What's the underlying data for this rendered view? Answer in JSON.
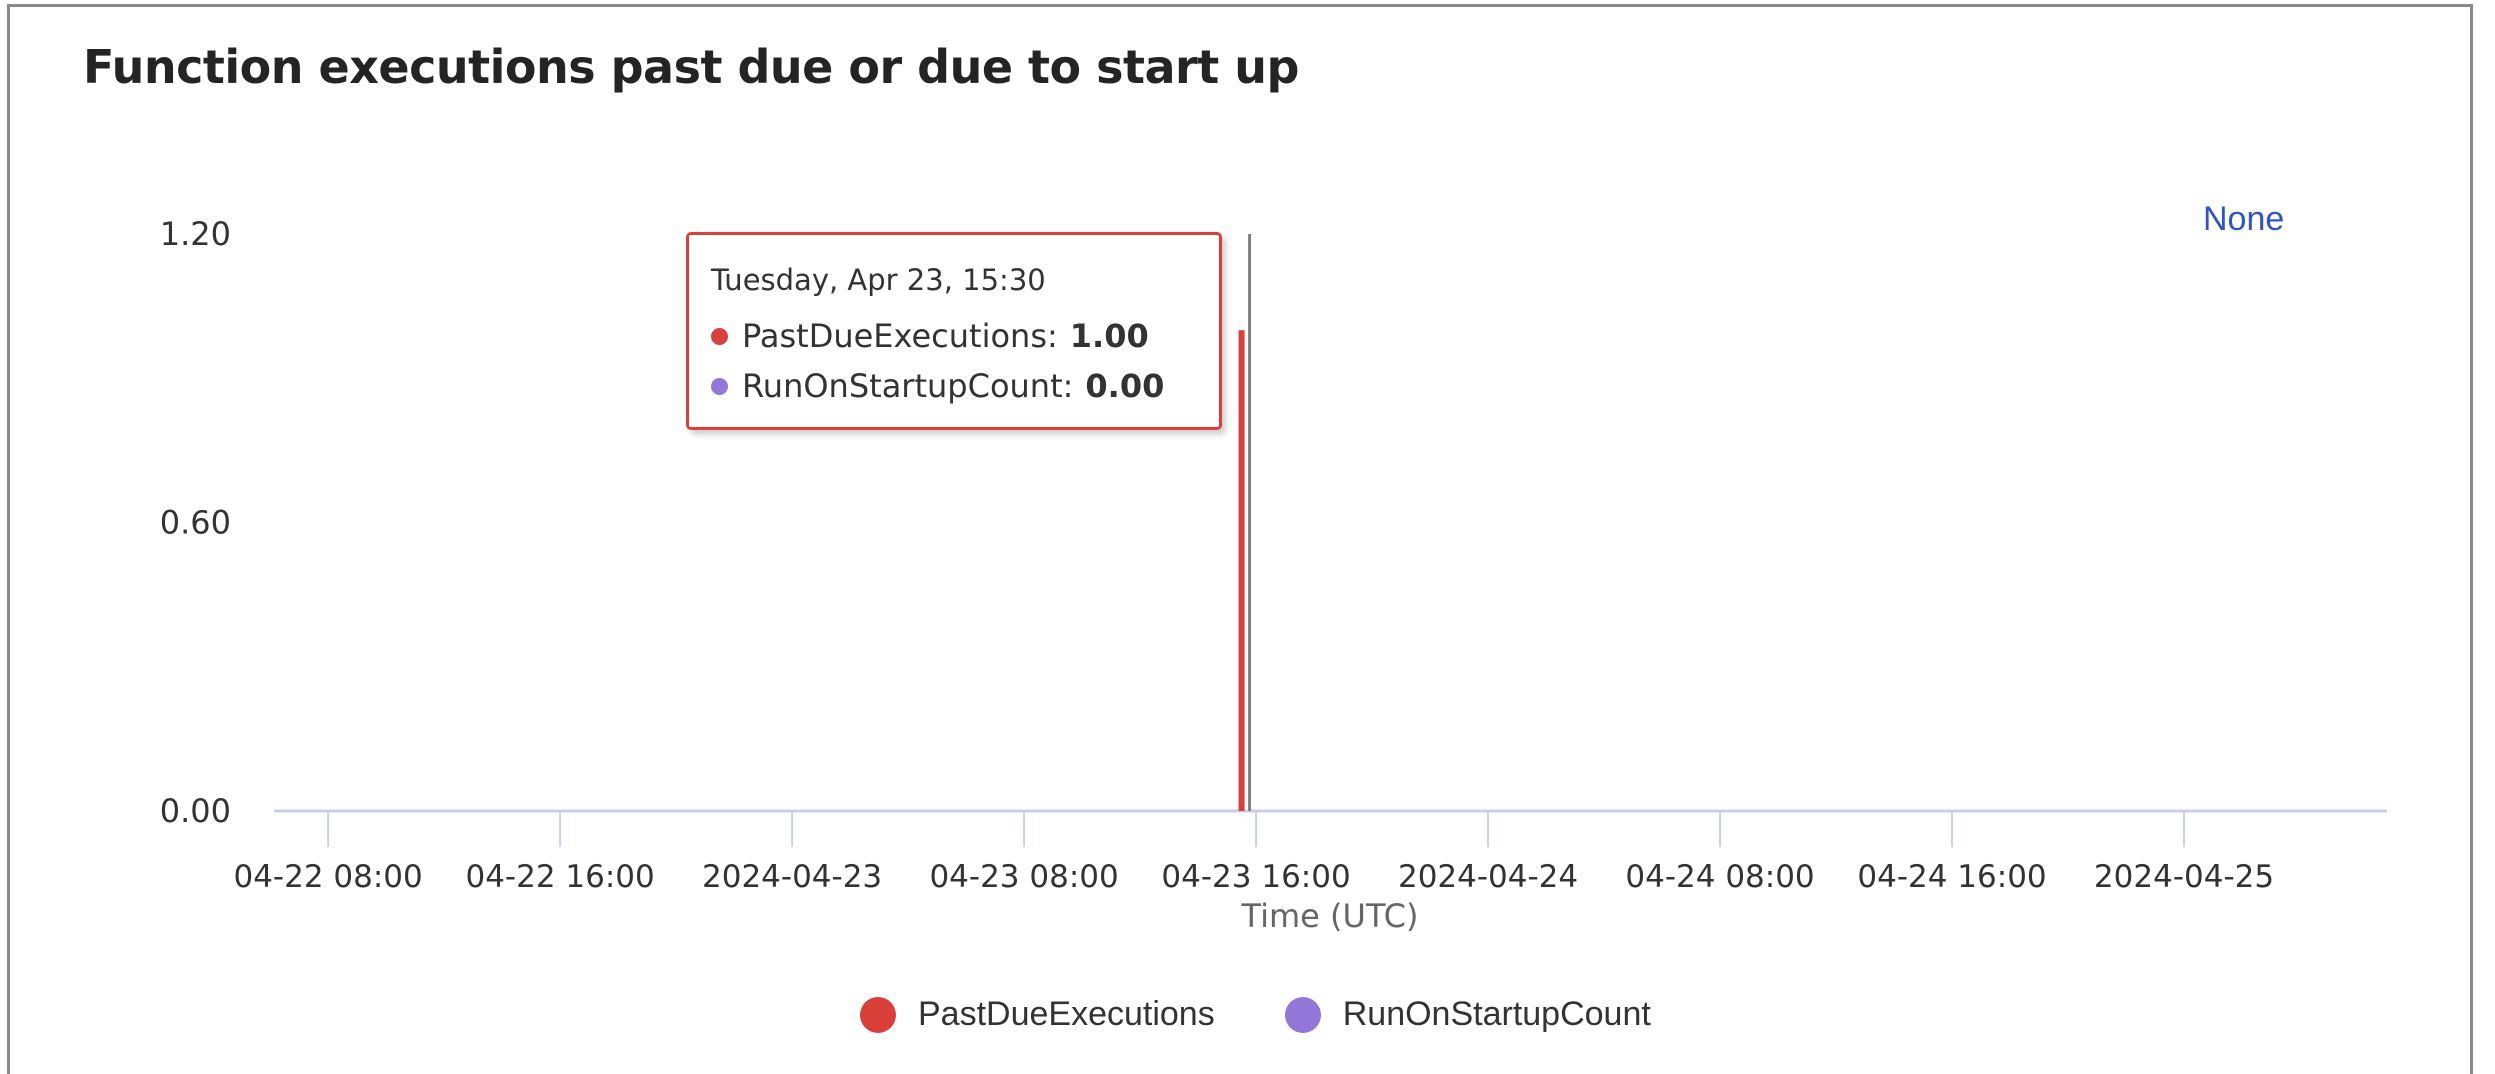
{
  "title": "Function executions past due or due to start up",
  "none_link": "None",
  "tooltip": {
    "date": "Tuesday, Apr 23, 15:30",
    "rows": [
      {
        "label": "PastDueExecutions:",
        "value": "1.00",
        "color": "#d9403a"
      },
      {
        "label": "RunOnStartupCount:",
        "value": "0.00",
        "color": "#9376d8"
      }
    ]
  },
  "chart_data": {
    "type": "bar",
    "title": "Function executions past due or due to start up",
    "xlabel": "Time (UTC)",
    "ylabel": "",
    "ylim": [
      0,
      1.2
    ],
    "yticks": [
      "0.00",
      "0.60",
      "1.20"
    ],
    "ytick_values": [
      0,
      0.6,
      1.2
    ],
    "xlim": [
      "2024-04-22T06:08",
      "2024-04-25T07:00"
    ],
    "xticks": [
      {
        "t": "2024-04-22T08:00",
        "label": "04-22 08:00"
      },
      {
        "t": "2024-04-22T16:00",
        "label": "04-22 16:00"
      },
      {
        "t": "2024-04-23T00:00",
        "label": "2024-04-23"
      },
      {
        "t": "2024-04-23T08:00",
        "label": "04-23 08:00"
      },
      {
        "t": "2024-04-23T16:00",
        "label": "04-23 16:00"
      },
      {
        "t": "2024-04-24T00:00",
        "label": "2024-04-24"
      },
      {
        "t": "2024-04-24T08:00",
        "label": "04-24 08:00"
      },
      {
        "t": "2024-04-24T16:00",
        "label": "04-24 16:00"
      },
      {
        "t": "2024-04-25T00:00",
        "label": "2024-04-25"
      }
    ],
    "grid": false,
    "legend_position": "bottom",
    "crosshair_at": "2024-04-23T15:30",
    "series": [
      {
        "name": "PastDueExecutions",
        "color": "#d9403a",
        "points": [
          {
            "t": "2024-04-23T15:30",
            "y": 1.0
          }
        ]
      },
      {
        "name": "RunOnStartupCount",
        "color": "#9376d8",
        "points": [
          {
            "t": "2024-04-23T15:30",
            "y": 0.0
          }
        ]
      }
    ]
  }
}
